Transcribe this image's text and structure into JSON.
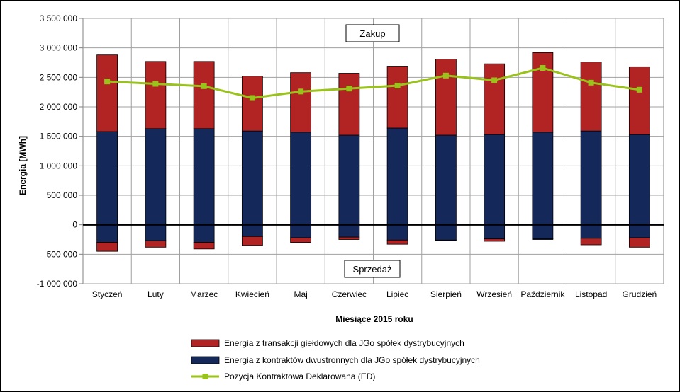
{
  "chart_data": {
    "type": "bar",
    "xlabel": "Miesiące 2015  roku",
    "ylabel": "Energia  [MWh]",
    "ylim": [
      -1000000,
      3500000
    ],
    "yticks": [
      3500000,
      3000000,
      2500000,
      2000000,
      1500000,
      1000000,
      500000,
      0,
      -500000,
      -1000000
    ],
    "ytick_labels": [
      "3 500 000",
      "3 000 000",
      "2 500 000",
      "2 000 000",
      "1 500 000",
      "1 000 000",
      "500 000",
      "0",
      "-500 000",
      "-1 000 000"
    ],
    "categories": [
      "Styczeń",
      "Luty",
      "Marzec",
      "Kwiecień",
      "Maj",
      "Czerwiec",
      "Lipiec",
      "Sierpień",
      "Wrzesień",
      "Październik",
      "Listopad",
      "Grudzień"
    ],
    "series": [
      {
        "name": "Energia z kontraktów dwustronnych dla JGo spółek dystrybucyjnych",
        "color": "#14285a",
        "positive": [
          1580000,
          1630000,
          1630000,
          1590000,
          1570000,
          1520000,
          1640000,
          1520000,
          1530000,
          1570000,
          1590000,
          1530000
        ],
        "negative": [
          -300000,
          -270000,
          -300000,
          -200000,
          -220000,
          -210000,
          -260000,
          -260000,
          -240000,
          -240000,
          -230000,
          -220000
        ]
      },
      {
        "name": "Energia z transakcji giełdowych dla JGo spółek dystrybucyjnych",
        "color": "#b22424",
        "positive": [
          1300000,
          1140000,
          1140000,
          930000,
          1010000,
          1050000,
          1050000,
          1290000,
          1200000,
          1350000,
          1170000,
          1150000
        ],
        "negative": [
          -150000,
          -110000,
          -110000,
          -150000,
          -80000,
          -40000,
          -70000,
          -10000,
          -40000,
          -10000,
          -110000,
          -160000
        ]
      },
      {
        "name": "Pozycja Kontraktowa Deklarowana (ED)",
        "color": "#99c21a",
        "type": "line",
        "values": [
          2430000,
          2390000,
          2350000,
          2150000,
          2260000,
          2310000,
          2360000,
          2530000,
          2450000,
          2660000,
          2410000,
          2290000
        ]
      }
    ],
    "annotations": [
      "Zakup",
      "Sprzedaż"
    ],
    "legend": [
      "Energia z transakcji giełdowych dla JGo spółek dystrybucyjnych",
      "Energia z kontraktów dwustronnych dla JGo spółek dystrybucyjnych",
      "Pozycja Kontraktowa Deklarowana (ED)"
    ],
    "legend_position": "bottom",
    "grid": true
  }
}
